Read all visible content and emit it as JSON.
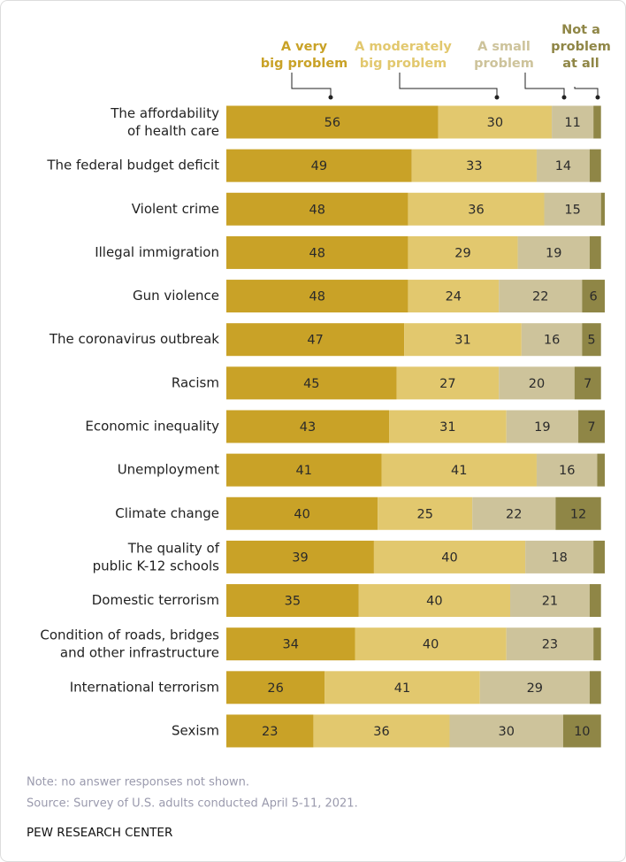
{
  "chart_data": {
    "type": "stacked-bar",
    "categories": [
      "The affordability\nof health care",
      "The federal budget deficit",
      "Violent crime",
      "Illegal immigration",
      "Gun violence",
      "The coronavirus outbreak",
      "Racism",
      "Economic inequality",
      "Unemployment",
      "Climate change",
      "The quality of\npublic K-12 schools",
      "Domestic terrorism",
      "Condition of roads, bridges\nand other infrastructure",
      "International terrorism",
      "Sexism"
    ],
    "series": [
      {
        "name": "A very\nbig problem",
        "color": "#c9a227",
        "values": [
          56,
          49,
          48,
          48,
          48,
          47,
          45,
          43,
          41,
          40,
          39,
          35,
          34,
          26,
          23
        ]
      },
      {
        "name": "A moderately\nbig problem",
        "color": "#e2c86e",
        "values": [
          30,
          33,
          36,
          29,
          24,
          31,
          27,
          31,
          41,
          25,
          40,
          40,
          40,
          41,
          36
        ]
      },
      {
        "name": "A small\nproblem",
        "color": "#cdc39b",
        "values": [
          11,
          14,
          15,
          19,
          22,
          16,
          20,
          19,
          16,
          22,
          18,
          21,
          23,
          29,
          30
        ]
      },
      {
        "name": "Not a\nproblem\nat all",
        "color": "#8f8646",
        "values": [
          2,
          3,
          1,
          3,
          6,
          5,
          7,
          7,
          2,
          12,
          3,
          3,
          2,
          3,
          10
        ]
      }
    ],
    "xlim": [
      0,
      100
    ],
    "note": "Note: no answer responses not shown.",
    "source": "Source: Survey of U.S. adults conducted April 5-11, 2021.",
    "credit": "PEW RESEARCH CENTER"
  }
}
